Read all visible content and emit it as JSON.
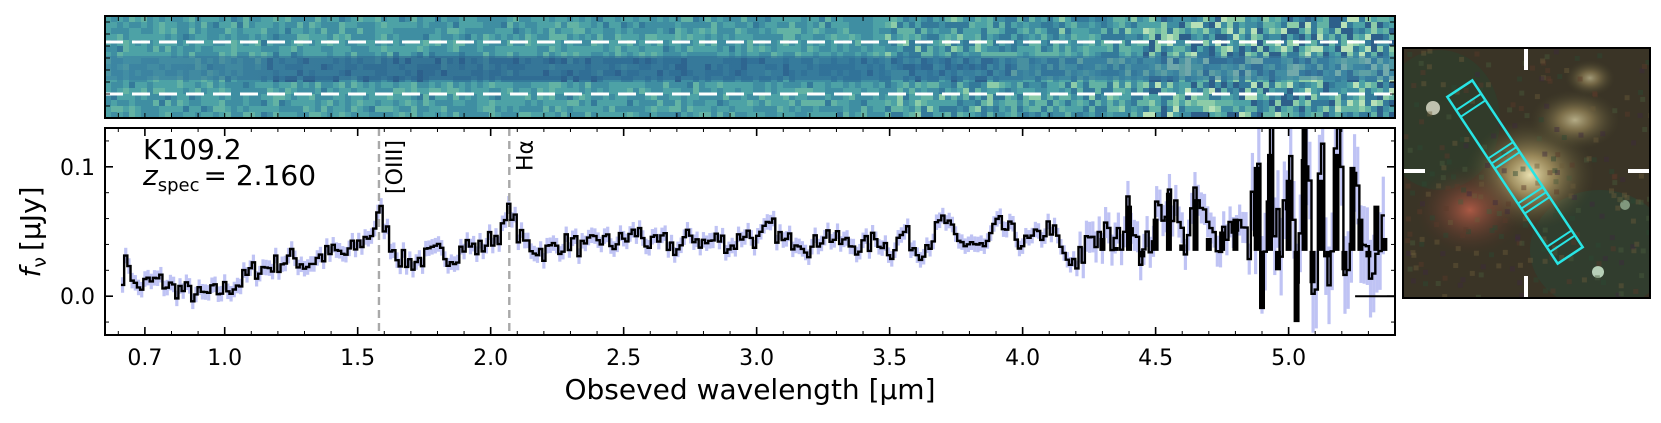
{
  "figure": {
    "object_name": "K109.2",
    "redshift_symbol": "z",
    "redshift_subscript": "spec",
    "redshift_equals": "= 2.160"
  },
  "chart_data": {
    "type": "line",
    "title": "",
    "xlabel": "Obseved wavelength [μm]",
    "ylabel": "f_ν [μJy]",
    "ylabel_parts": {
      "symbol": "f",
      "subscript": "ν",
      "unit": "[μJy]"
    },
    "xlim": [
      0.55,
      5.4
    ],
    "ylim": [
      -0.03,
      0.13
    ],
    "grid": false,
    "x_ticks": [
      {
        "value": 0.7,
        "label": "0.7"
      },
      {
        "value": 1.0,
        "label": "1.0"
      },
      {
        "value": 1.5,
        "label": "1.5"
      },
      {
        "value": 2.0,
        "label": "2.0"
      },
      {
        "value": 2.5,
        "label": "2.5"
      },
      {
        "value": 3.0,
        "label": "3.0"
      },
      {
        "value": 3.5,
        "label": "3.5"
      },
      {
        "value": 4.0,
        "label": "4.0"
      },
      {
        "value": 4.5,
        "label": "4.5"
      },
      {
        "value": 5.0,
        "label": "5.0"
      }
    ],
    "y_ticks": [
      {
        "value": 0.0,
        "label": "0.0"
      },
      {
        "value": 0.1,
        "label": "0.1"
      }
    ],
    "emission_lines": [
      {
        "name": "[OIII]",
        "wavelength": 1.58
      },
      {
        "name": "Hα",
        "wavelength": 2.07
      }
    ],
    "series": [
      {
        "name": "flux",
        "color": "#000000",
        "step": true,
        "x": [
          0.6,
          0.63,
          0.66,
          0.7,
          0.75,
          0.8,
          0.85,
          0.9,
          0.95,
          1.0,
          1.05,
          1.1,
          1.15,
          1.2,
          1.25,
          1.3,
          1.35,
          1.4,
          1.45,
          1.5,
          1.55,
          1.58,
          1.62,
          1.66,
          1.7,
          1.75,
          1.8,
          1.85,
          1.9,
          1.95,
          2.0,
          2.04,
          2.07,
          2.1,
          2.15,
          2.2,
          2.25,
          2.3,
          2.35,
          2.4,
          2.45,
          2.5,
          2.55,
          2.6,
          2.65,
          2.7,
          2.75,
          2.8,
          2.85,
          2.9,
          2.95,
          3.0,
          3.05,
          3.1,
          3.15,
          3.2,
          3.25,
          3.3,
          3.35,
          3.4,
          3.45,
          3.5,
          3.55,
          3.6,
          3.65,
          3.7,
          3.75,
          3.8,
          3.85,
          3.9,
          3.95,
          4.0,
          4.05,
          4.1,
          4.15,
          4.2,
          4.25,
          4.3,
          4.35,
          4.4,
          4.45,
          4.5,
          4.55,
          4.6,
          4.65,
          4.7,
          4.75,
          4.8,
          4.85,
          4.88,
          4.9,
          4.93,
          4.96,
          5.0,
          5.03,
          5.06,
          5.09,
          5.12,
          5.15,
          5.18,
          5.21,
          5.24,
          5.27,
          5.3,
          5.33,
          5.36
        ],
        "y": [
          0.01,
          0.03,
          0.005,
          0.01,
          0.012,
          0.006,
          0.004,
          0.0,
          0.002,
          0.006,
          0.01,
          0.02,
          0.022,
          0.026,
          0.03,
          0.024,
          0.03,
          0.034,
          0.032,
          0.04,
          0.05,
          0.065,
          0.04,
          0.028,
          0.026,
          0.03,
          0.034,
          0.03,
          0.04,
          0.036,
          0.045,
          0.05,
          0.07,
          0.045,
          0.038,
          0.034,
          0.04,
          0.042,
          0.035,
          0.045,
          0.04,
          0.044,
          0.05,
          0.038,
          0.042,
          0.036,
          0.048,
          0.04,
          0.045,
          0.038,
          0.05,
          0.042,
          0.055,
          0.04,
          0.046,
          0.036,
          0.05,
          0.042,
          0.04,
          0.038,
          0.045,
          0.035,
          0.05,
          0.034,
          0.044,
          0.06,
          0.04,
          0.042,
          0.036,
          0.055,
          0.05,
          0.04,
          0.045,
          0.055,
          0.03,
          0.02,
          0.05,
          0.045,
          0.038,
          0.07,
          0.03,
          0.06,
          0.08,
          0.04,
          0.075,
          0.045,
          0.05,
          0.06,
          0.035,
          0.1,
          -0.01,
          0.11,
          0.02,
          0.09,
          -0.02,
          0.13,
          0.01,
          0.09,
          0.03,
          0.11,
          0.02,
          0.1,
          0.06,
          0.03,
          0.07,
          0.045
        ]
      },
      {
        "name": "uncertainty band",
        "color": "#aab0f0",
        "type": "error"
      }
    ]
  },
  "panels": {
    "spectrum_2d": {
      "background": "#2f7f9a",
      "bright": "#cfeec4",
      "dark": "#31337e",
      "aperture_line_color": "#ffffff"
    },
    "thumbnail": {
      "background": "#33352a",
      "slit_color": "#28e4e4",
      "marker_color": "#ffffff"
    }
  }
}
